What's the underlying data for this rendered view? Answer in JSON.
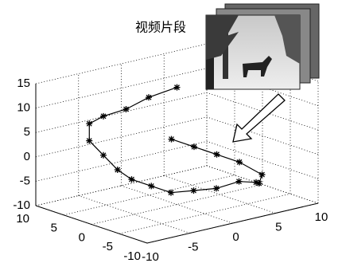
{
  "chart_data": {
    "type": "line3d",
    "annotation": "视频片段",
    "x": [
      0,
      -2,
      -4,
      -6,
      -7,
      -7,
      -6,
      -5,
      -4,
      -3,
      -2,
      0,
      2,
      4,
      6,
      7,
      8,
      6,
      4,
      2,
      0
    ],
    "y": [
      0,
      2,
      3,
      4,
      5,
      5,
      4,
      3,
      2,
      0,
      -2,
      -3,
      -4,
      -5,
      -5,
      -4,
      -3,
      -2,
      -1,
      0,
      1
    ],
    "z": [
      14,
      12,
      10,
      9,
      7.5,
      4,
      1,
      -2,
      -4,
      -5,
      -6,
      -6,
      -6,
      -5,
      -6,
      -7,
      -6,
      -3,
      -1,
      1,
      3
    ],
    "color": "#000000",
    "xlim": [
      -10,
      10
    ],
    "ylim": [
      -10,
      10
    ],
    "zlim": [
      -10,
      15
    ],
    "xticks": [
      -10,
      -5,
      0,
      5,
      10
    ],
    "yticks": [
      -10,
      -5,
      0,
      5,
      10
    ],
    "zticks": [
      -10,
      -5,
      0,
      5,
      10,
      15
    ],
    "grid": true
  }
}
